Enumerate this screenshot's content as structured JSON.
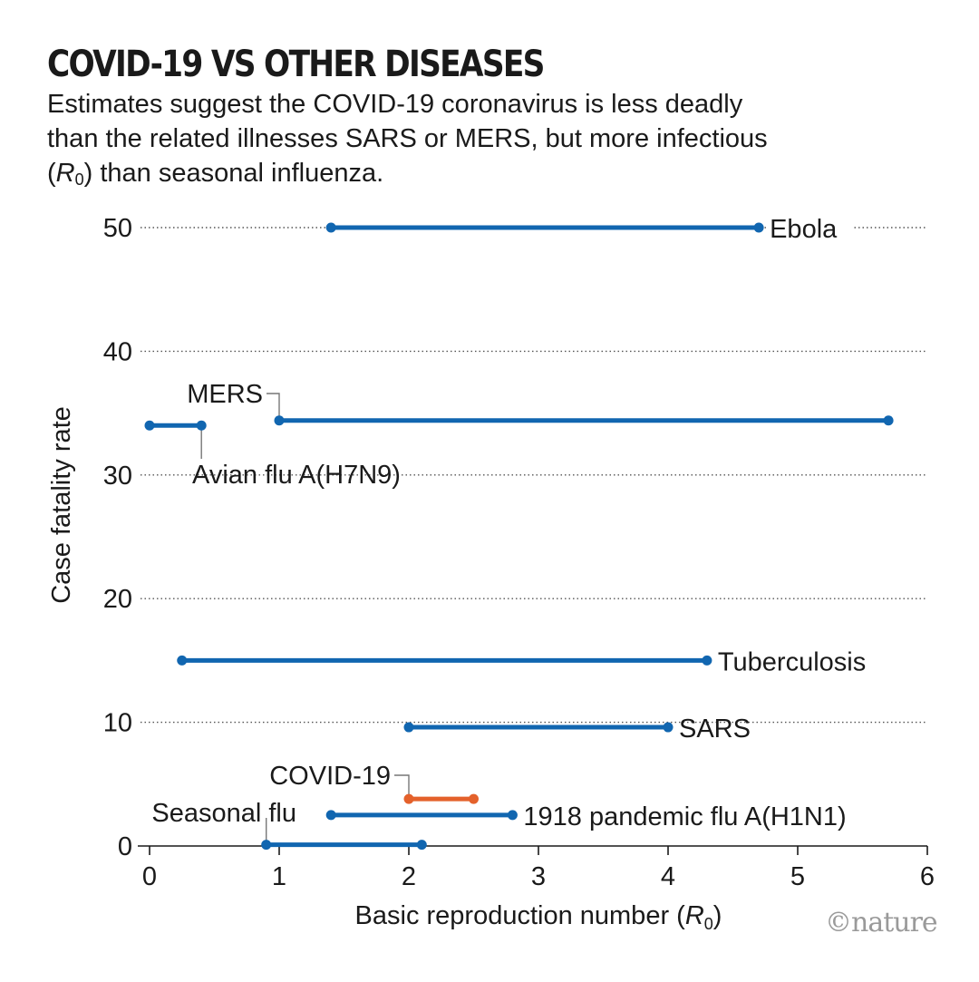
{
  "title": "COVID-19 VS OTHER DISEASES",
  "subtitle": {
    "before": "Estimates suggest the COVID-19 coronavirus is less deadly than the related illnesses SARS or MERS, but more infectious (",
    "italic": "R",
    "sub": "0",
    "after": ") than seasonal influenza."
  },
  "logo": "©nature",
  "colors": {
    "default": "#1166b0",
    "highlight": "#e4612b",
    "grid": "#555555",
    "text": "#1a1a1a"
  },
  "chart_data": {
    "type": "range-dot",
    "xlabel": {
      "prefix": "Basic reproduction number (",
      "italic": "R",
      "sub": "0",
      "suffix": ")"
    },
    "ylabel": "Case fatality rate",
    "xlim": [
      0,
      6
    ],
    "ylim": [
      0,
      50
    ],
    "xticks": [
      0,
      1,
      2,
      3,
      4,
      5,
      6
    ],
    "yticks": [
      0,
      10,
      20,
      30,
      40,
      50
    ],
    "grid": "horizontal dotted",
    "series": [
      {
        "name": "Ebola",
        "x": [
          1.4,
          4.7
        ],
        "y": 50,
        "color": "default"
      },
      {
        "name": "MERS",
        "x": [
          1.0,
          5.7
        ],
        "y": 34.4,
        "color": "default"
      },
      {
        "name": "Avian flu A(H7N9)",
        "x": [
          0.0,
          0.4
        ],
        "y": 34.0,
        "color": "default"
      },
      {
        "name": "Tuberculosis",
        "x": [
          0.25,
          4.3
        ],
        "y": 15.0,
        "color": "default"
      },
      {
        "name": "SARS",
        "x": [
          2.0,
          4.0
        ],
        "y": 9.6,
        "color": "default"
      },
      {
        "name": "COVID-19",
        "x": [
          2.0,
          2.5
        ],
        "y": 3.8,
        "color": "highlight"
      },
      {
        "name": "1918 pandemic flu A(H1N1)",
        "x": [
          1.4,
          2.8
        ],
        "y": 2.5,
        "color": "default"
      },
      {
        "name": "Seasonal flu",
        "x": [
          0.9,
          2.1
        ],
        "y": 0.1,
        "color": "default"
      }
    ]
  }
}
